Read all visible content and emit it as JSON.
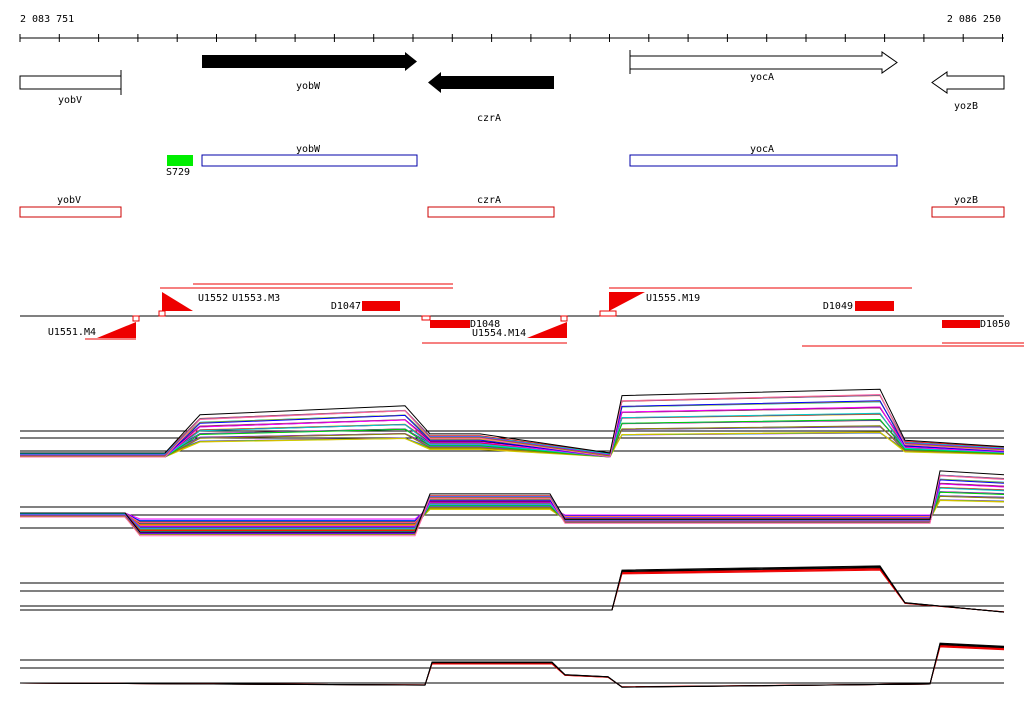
{
  "ruler": {
    "start": "2 083 751",
    "end": "2 086 250"
  },
  "genes": [
    "yobV",
    "yobW",
    "czrA",
    "yocA",
    "yozB"
  ],
  "annotations": [
    "S729",
    "yobW",
    "yocA"
  ],
  "features": [
    "yobV",
    "czrA",
    "yozB"
  ],
  "probes": [
    "U1552",
    "U1553.M3",
    "D1047",
    "U1555.M19",
    "D1049",
    "U1551.M4",
    "D1048",
    "U1554.M14",
    "D1050"
  ]
}
